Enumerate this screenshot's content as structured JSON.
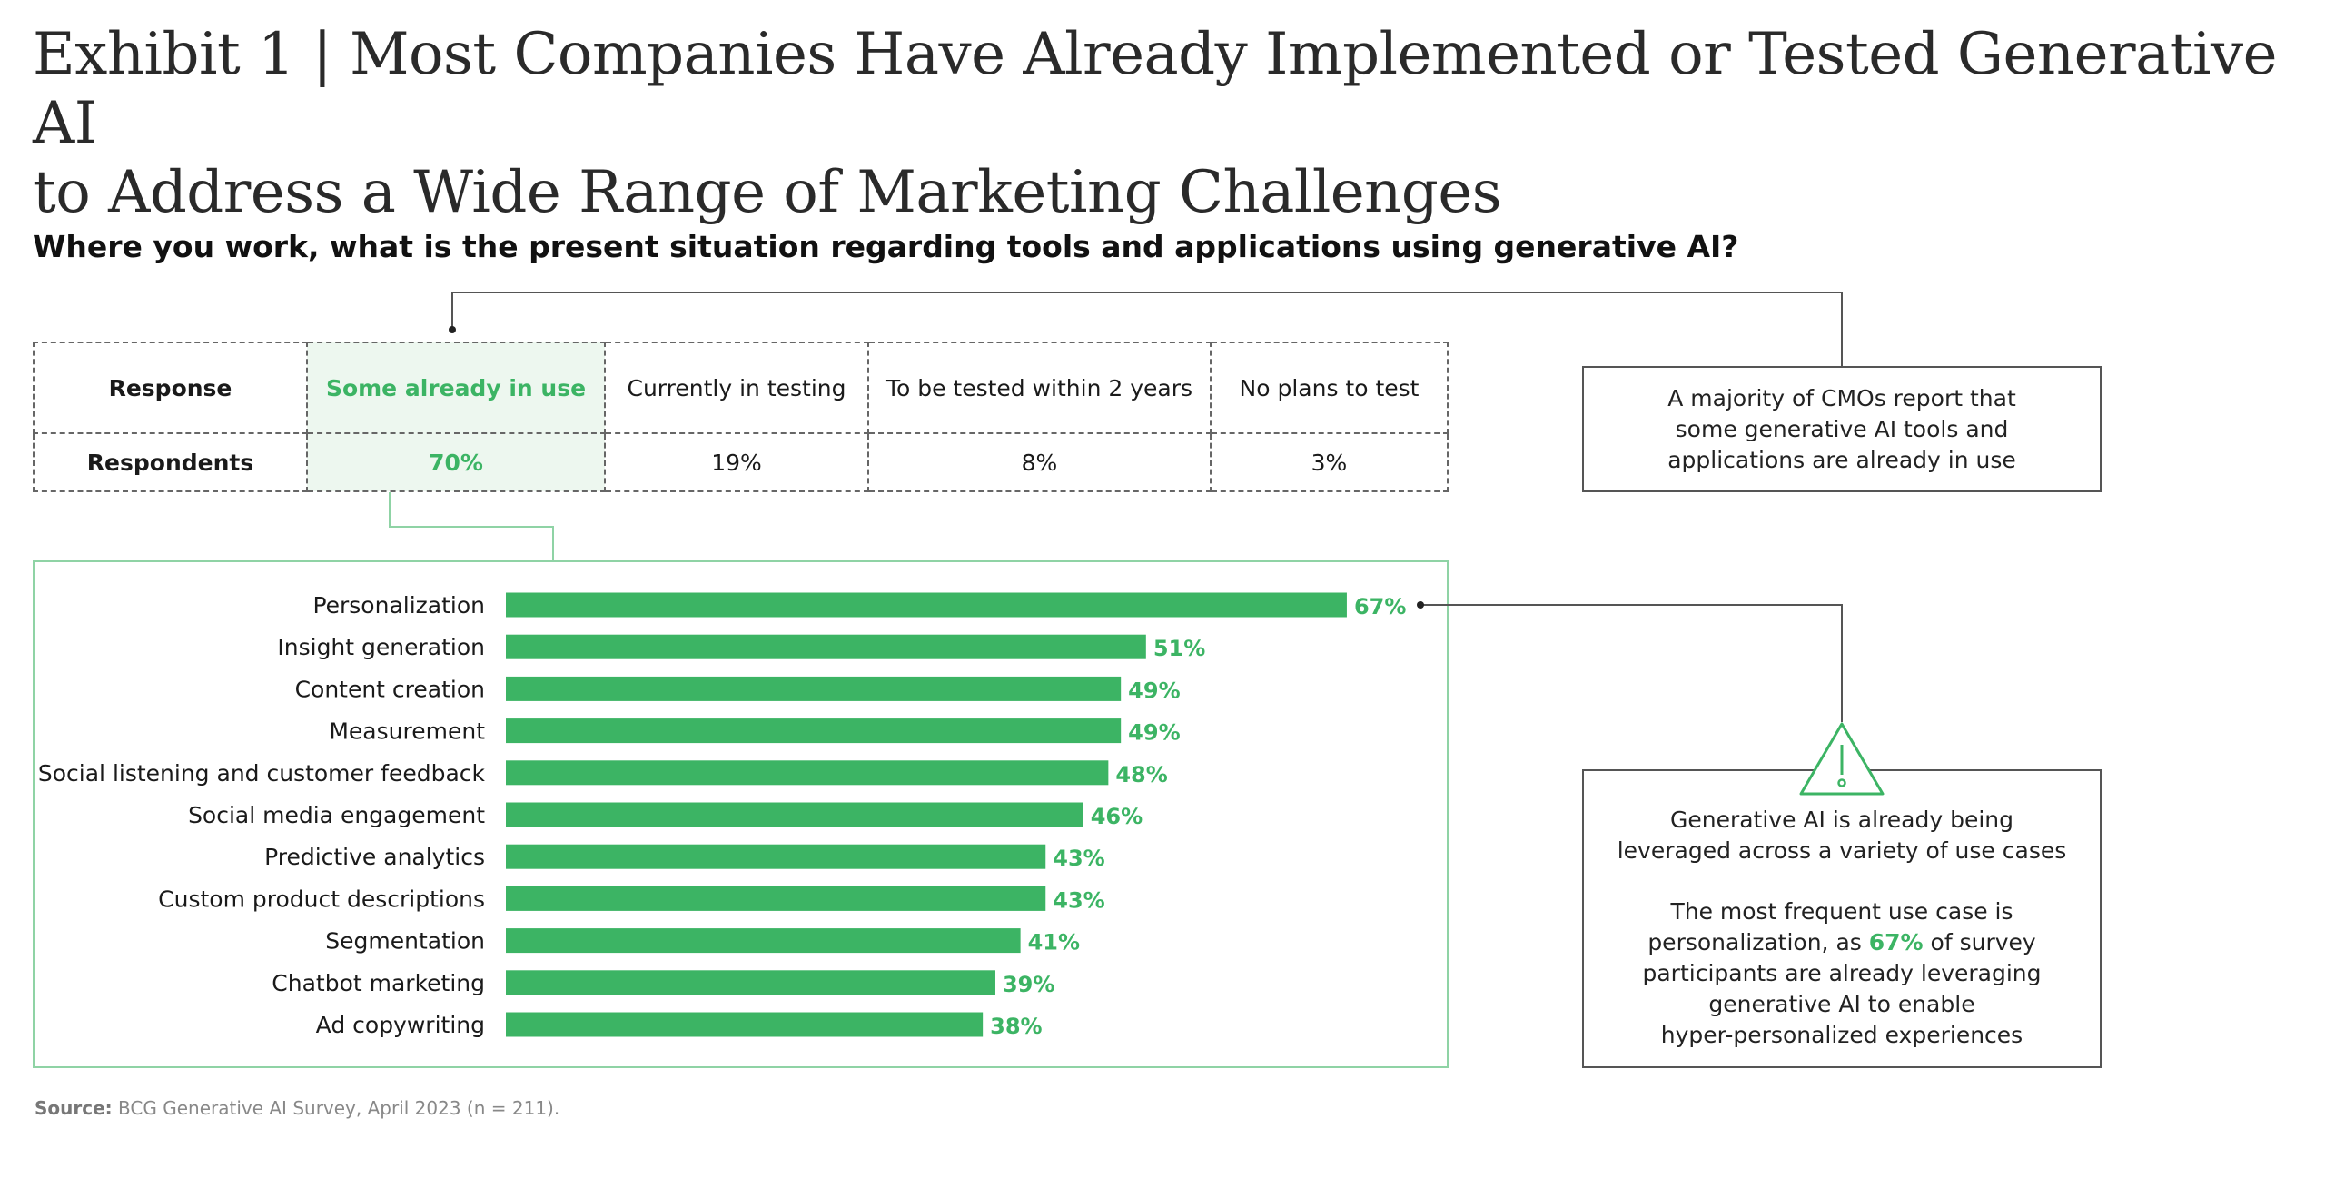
{
  "title_line1": "Exhibit 1 | Most Companies Have Already Implemented or Tested Generative AI",
  "title_line2": "to Address a Wide Range of Marketing Challenges",
  "subtitle": "Where you work, what is the present situation regarding tools and applications using generative AI?",
  "table": {
    "row_labels": [
      "Response",
      "Respondents"
    ],
    "responses": [
      "Some already in use",
      "Currently in testing",
      "To be tested within 2 years",
      "No plans to test"
    ],
    "respondents": [
      "70%",
      "19%",
      "8%",
      "3%"
    ],
    "highlighted": "Some already in use"
  },
  "callout1": {
    "lines": [
      "A majority of CMOs report that",
      "some generative AI tools and",
      "applications are already in use"
    ]
  },
  "callout2": {
    "icon": "warning-triangle-icon",
    "para1": [
      "Generative AI is already being",
      "leveraged across a variety of use cases"
    ],
    "para2_line1": "The most frequent use case is",
    "para2_line2_pre": "personalization, as ",
    "para2_line2_highlight": "67%",
    "para2_line2_post": " of survey",
    "para2_rest": [
      "participants are already leveraging",
      "generative AI to enable",
      "hyper-personalized experiences"
    ]
  },
  "source_label": "Source:",
  "source_text": "BCG Generative AI Survey, April 2023 (n = 211).",
  "colors": {
    "accent": "#3cb464",
    "highlight_fill": "#edf7ef",
    "box_border": "#8fd3a5",
    "text": "#1a1a1a"
  },
  "chart_data": {
    "type": "bar",
    "orientation": "horizontal",
    "categories": [
      "Personalization",
      "Insight generation",
      "Content creation",
      "Measurement",
      "Social listening and customer feedback",
      "Social media engagement",
      "Predictive analytics",
      "Custom product descriptions",
      "Segmentation",
      "Chatbot marketing",
      "Ad copywriting"
    ],
    "values": [
      67,
      51,
      49,
      49,
      48,
      46,
      43,
      43,
      41,
      39,
      38
    ],
    "value_labels": [
      "67%",
      "51%",
      "49%",
      "49%",
      "48%",
      "46%",
      "43%",
      "43%",
      "41%",
      "39%",
      "38%"
    ],
    "unit": "%",
    "bar_color": "#3cb464",
    "grid": false
  }
}
